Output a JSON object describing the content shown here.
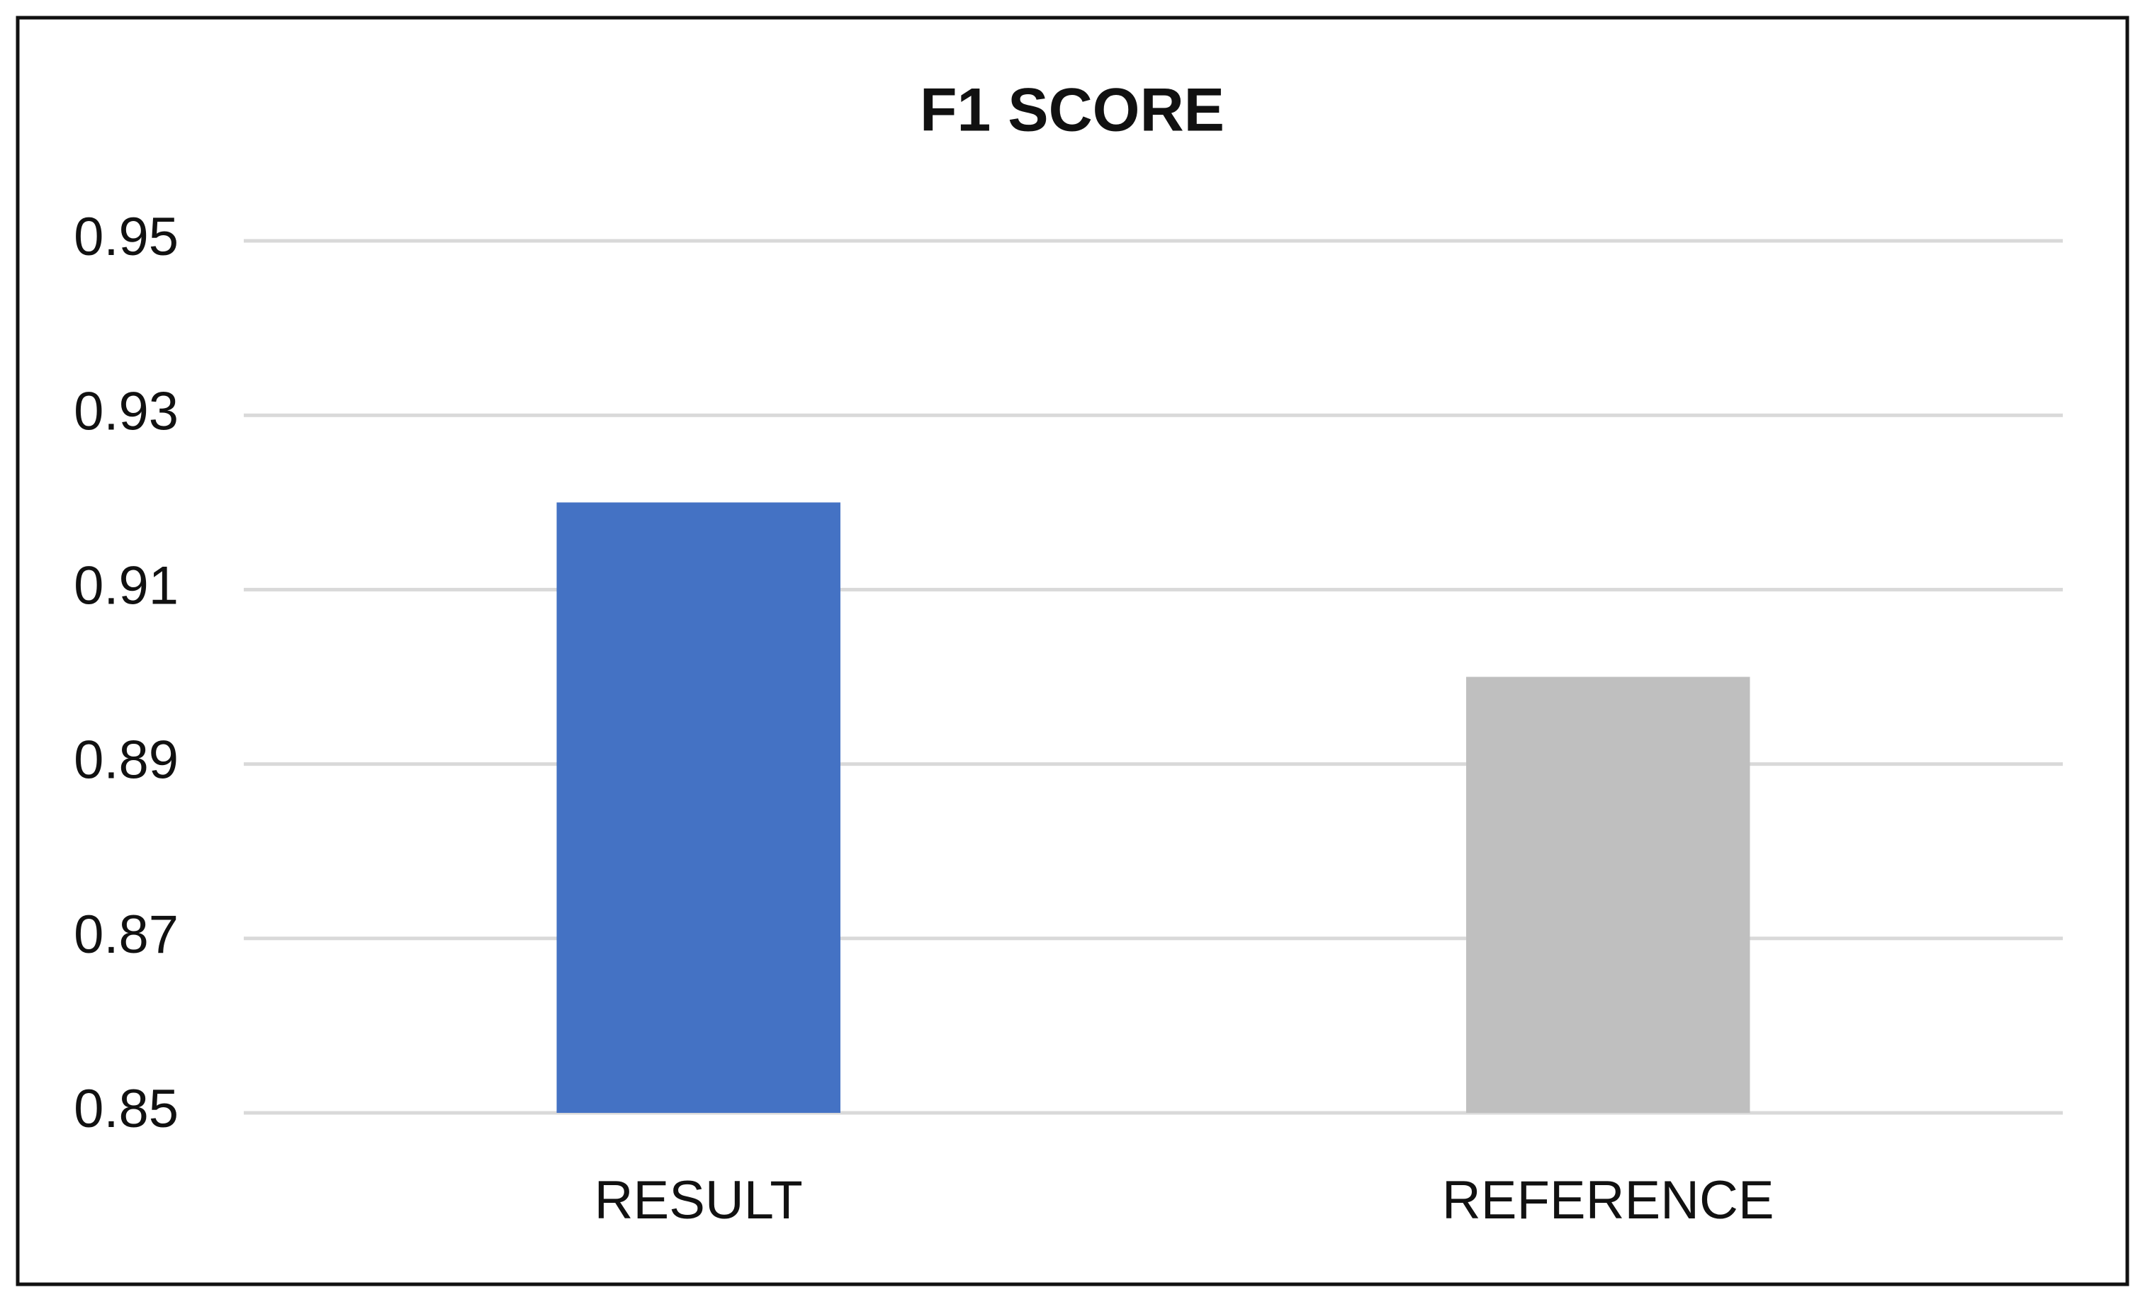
{
  "chart_data": {
    "type": "bar",
    "title": "F1 SCORE",
    "categories": [
      "RESULT",
      "REFERENCE"
    ],
    "values": [
      0.92,
      0.9
    ],
    "colors": [
      "#4472c4",
      "#bfbfbf"
    ],
    "ylim": [
      0.85,
      0.95
    ],
    "yticks": [
      0.85,
      0.87,
      0.89,
      0.91,
      0.93,
      0.95
    ],
    "grid": true
  }
}
